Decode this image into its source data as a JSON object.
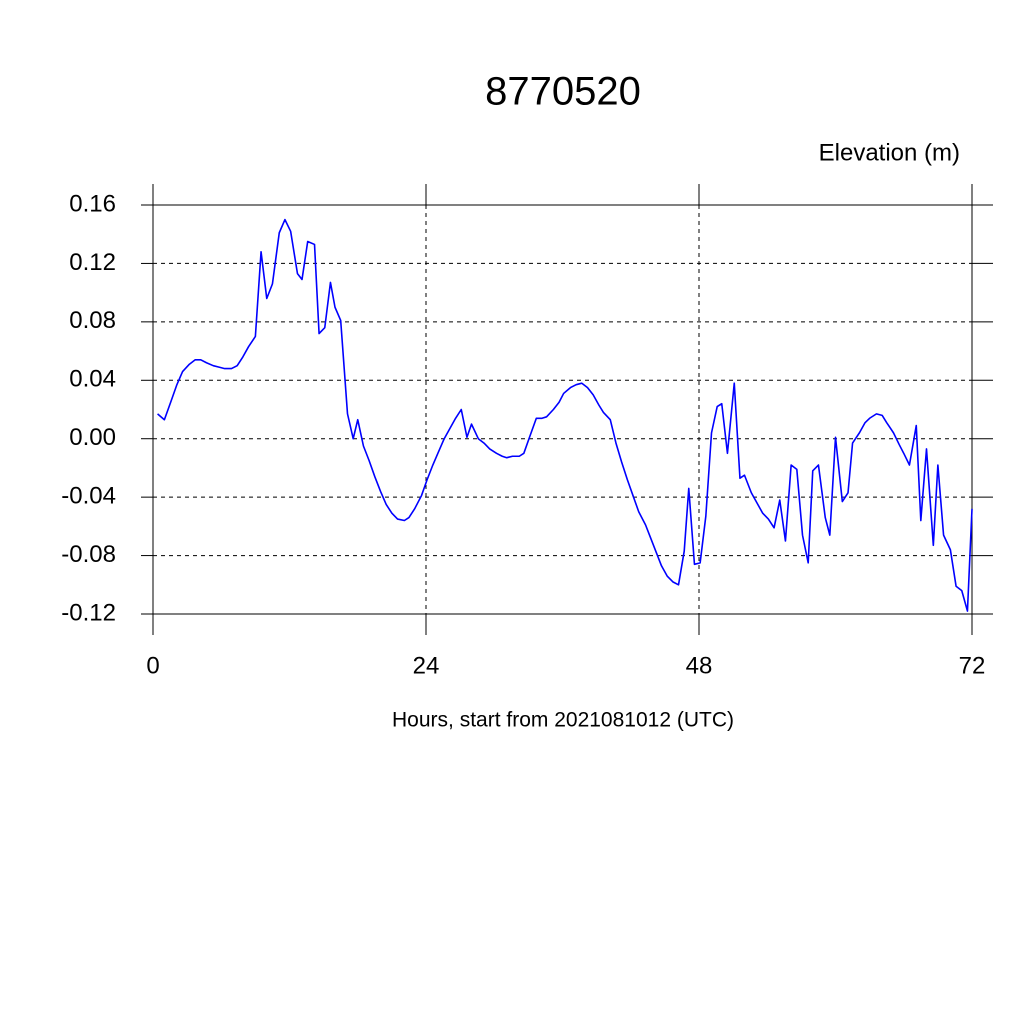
{
  "chart_data": {
    "type": "line",
    "title": "8770520",
    "subtitle": "Elevation (m)",
    "x_label": "Hours, start from 2021081012 (UTC)",
    "xlim": [
      0,
      72
    ],
    "xticks": [
      0,
      24,
      48,
      72
    ],
    "ylim": [
      -0.12,
      0.16
    ],
    "yticks": [
      0.16,
      0.12,
      0.08,
      0.04,
      {
        "value": 0,
        "label": "0.00"
      },
      -0.04,
      -0.08,
      -0.12
    ],
    "grid": true,
    "series": [
      {
        "color": "#0000ff",
        "x": [
          0.4,
          1.0,
          1.6,
          2.1,
          2.6,
          3.2,
          3.7,
          4.2,
          4.7,
          5.3,
          5.8,
          6.3,
          6.9,
          7.4,
          7.9,
          8.4,
          9.0,
          9.5,
          10.0,
          10.5,
          11.1,
          11.6,
          12.1,
          12.7,
          13.1,
          13.6,
          14.2,
          14.6,
          15.1,
          15.6,
          16.0,
          16.5,
          17.1,
          17.6,
          18.0,
          18.5,
          19.0,
          19.5,
          20.0,
          20.5,
          21.0,
          21.5,
          22.1,
          22.5,
          23.0,
          23.6,
          24.1,
          24.6,
          25.1,
          25.6,
          26.1,
          26.6,
          27.1,
          27.6,
          28.0,
          28.6,
          29.1,
          29.6,
          30.2,
          30.7,
          31.1,
          31.6,
          32.2,
          32.6,
          33.1,
          33.7,
          34.2,
          34.6,
          35.2,
          35.7,
          36.1,
          36.7,
          37.2,
          37.7,
          38.2,
          38.7,
          39.2,
          39.6,
          40.2,
          40.7,
          41.2,
          41.7,
          42.2,
          42.7,
          43.3,
          43.7,
          44.2,
          44.7,
          45.2,
          45.7,
          46.2,
          46.7,
          47.1,
          47.6,
          48.1,
          48.6,
          49.1,
          49.6,
          50.0,
          50.5,
          51.1,
          51.6,
          52.0,
          52.6,
          53.1,
          53.6,
          54.1,
          54.6,
          55.1,
          55.6,
          56.1,
          56.6,
          57.1,
          57.6,
          58.0,
          58.5,
          59.1,
          59.5,
          60.0,
          60.6,
          61.1,
          61.5,
          62.1,
          62.6,
          63.0,
          63.6,
          64.1,
          64.5,
          65.1,
          65.6,
          66.0,
          66.5,
          67.1,
          67.5,
          68.0,
          68.6,
          69.0,
          69.5,
          70.1,
          70.6,
          71.1,
          71.6,
          72.0
        ],
        "values": [
          0.017,
          0.013,
          0.026,
          0.037,
          0.046,
          0.051,
          0.054,
          0.054,
          0.052,
          0.05,
          0.049,
          0.048,
          0.048,
          0.05,
          0.056,
          0.063,
          0.07,
          0.128,
          0.096,
          0.106,
          0.141,
          0.15,
          0.142,
          0.113,
          0.109,
          0.135,
          0.133,
          0.072,
          0.076,
          0.107,
          0.09,
          0.081,
          0.017,
          0.0,
          0.013,
          -0.005,
          -0.015,
          -0.026,
          -0.036,
          -0.045,
          -0.051,
          -0.055,
          -0.056,
          -0.054,
          -0.048,
          -0.039,
          -0.028,
          -0.018,
          -0.009,
          0.0,
          0.007,
          0.014,
          0.02,
          0.001,
          0.01,
          0.0,
          -0.003,
          -0.007,
          -0.01,
          -0.012,
          -0.013,
          -0.012,
          -0.012,
          -0.01,
          0.001,
          0.014,
          0.014,
          0.015,
          0.02,
          0.025,
          0.031,
          0.035,
          0.037,
          0.038,
          0.035,
          0.03,
          0.023,
          0.018,
          0.013,
          -0.003,
          -0.016,
          -0.028,
          -0.039,
          -0.05,
          -0.059,
          -0.067,
          -0.077,
          -0.087,
          -0.094,
          -0.098,
          -0.1,
          -0.077,
          -0.034,
          -0.086,
          -0.085,
          -0.053,
          0.004,
          0.022,
          0.024,
          -0.01,
          0.038,
          -0.027,
          -0.025,
          -0.037,
          -0.044,
          -0.051,
          -0.055,
          -0.061,
          -0.042,
          -0.07,
          -0.018,
          -0.021,
          -0.066,
          -0.085,
          -0.022,
          -0.018,
          -0.054,
          -0.066,
          0.001,
          -0.043,
          -0.037,
          -0.003,
          0.004,
          0.011,
          0.014,
          0.017,
          0.016,
          0.011,
          0.004,
          -0.004,
          -0.01,
          -0.018,
          0.009,
          -0.056,
          -0.007,
          -0.073,
          -0.018,
          -0.066,
          -0.076,
          -0.101,
          -0.104,
          -0.118,
          -0.048
        ]
      }
    ]
  }
}
